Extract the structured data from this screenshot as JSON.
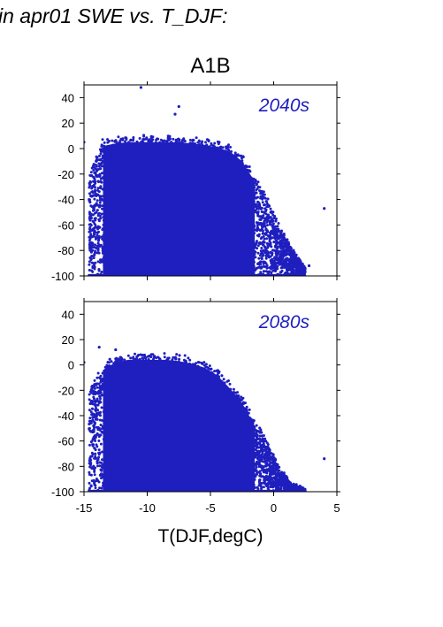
{
  "header": {
    "title": "in apr01 SWE vs. T_DJF:"
  },
  "chart_data": [
    {
      "type": "scatter",
      "title": "A1B",
      "annotation": "2040s",
      "xlabel": "",
      "ylabel": "",
      "xlim": [
        -15,
        5
      ],
      "ylim": [
        -100,
        50
      ],
      "xticks": [
        -15,
        -10,
        -5,
        0,
        5
      ],
      "yticks": [
        -100,
        -80,
        -60,
        -40,
        -20,
        0,
        20,
        40
      ],
      "marker_color": "#1f1fbf",
      "grid": false,
      "envelope": {
        "x": [
          -14.6,
          -13.5,
          -12.5,
          -11.5,
          -10.5,
          -9.5,
          -8.5,
          -7.5,
          -6.5,
          -5.5,
          -4.5,
          -3.5,
          -2.5,
          -1.5,
          -0.5,
          0.5,
          1.5,
          2.5
        ],
        "upper": [
          -20,
          6,
          8,
          9,
          9,
          9,
          9,
          9,
          8,
          7,
          5,
          2,
          -6,
          -22,
          -40,
          -62,
          -80,
          -95
        ],
        "lower": [
          -100,
          -100,
          -100,
          -100,
          -100,
          -100,
          -100,
          -100,
          -100,
          -100,
          -100,
          -100,
          -100,
          -100,
          -100,
          -100,
          -100,
          -100
        ]
      },
      "outliers": [
        {
          "x": -10.5,
          "y": 48
        },
        {
          "x": -7.5,
          "y": 33
        },
        {
          "x": -7.8,
          "y": 27
        },
        {
          "x": 4.0,
          "y": -47
        },
        {
          "x": -15.0,
          "y": 5
        },
        {
          "x": 2.8,
          "y": -92
        }
      ]
    },
    {
      "type": "scatter",
      "title": "",
      "annotation": "2080s",
      "xlabel": "T(DJF,degC)",
      "ylabel": "",
      "xlim": [
        -15,
        5
      ],
      "ylim": [
        -100,
        50
      ],
      "xticks": [
        -15,
        -10,
        -5,
        0,
        5
      ],
      "yticks": [
        -100,
        -80,
        -60,
        -40,
        -20,
        0,
        20,
        40
      ],
      "marker_color": "#1f1fbf",
      "grid": false,
      "envelope": {
        "x": [
          -14.6,
          -13.5,
          -12.5,
          -11.5,
          -10.5,
          -9.5,
          -8.5,
          -7.5,
          -6.5,
          -5.5,
          -4.5,
          -3.5,
          -2.5,
          -1.5,
          -0.5,
          0.5,
          1.5,
          2.5
        ],
        "upper": [
          -20,
          0,
          6,
          8,
          8,
          8,
          8,
          7,
          5,
          2,
          -4,
          -14,
          -26,
          -44,
          -62,
          -82,
          -95,
          -99
        ],
        "lower": [
          -100,
          -100,
          -100,
          -100,
          -100,
          -100,
          -100,
          -100,
          -100,
          -100,
          -100,
          -100,
          -100,
          -100,
          -100,
          -100,
          -100,
          -100
        ]
      },
      "outliers": [
        {
          "x": -13.8,
          "y": 14
        },
        {
          "x": -12.5,
          "y": 12
        },
        {
          "x": 4.0,
          "y": -74
        },
        {
          "x": -15.0,
          "y": 2
        },
        {
          "x": 2.5,
          "y": -100
        }
      ]
    }
  ]
}
